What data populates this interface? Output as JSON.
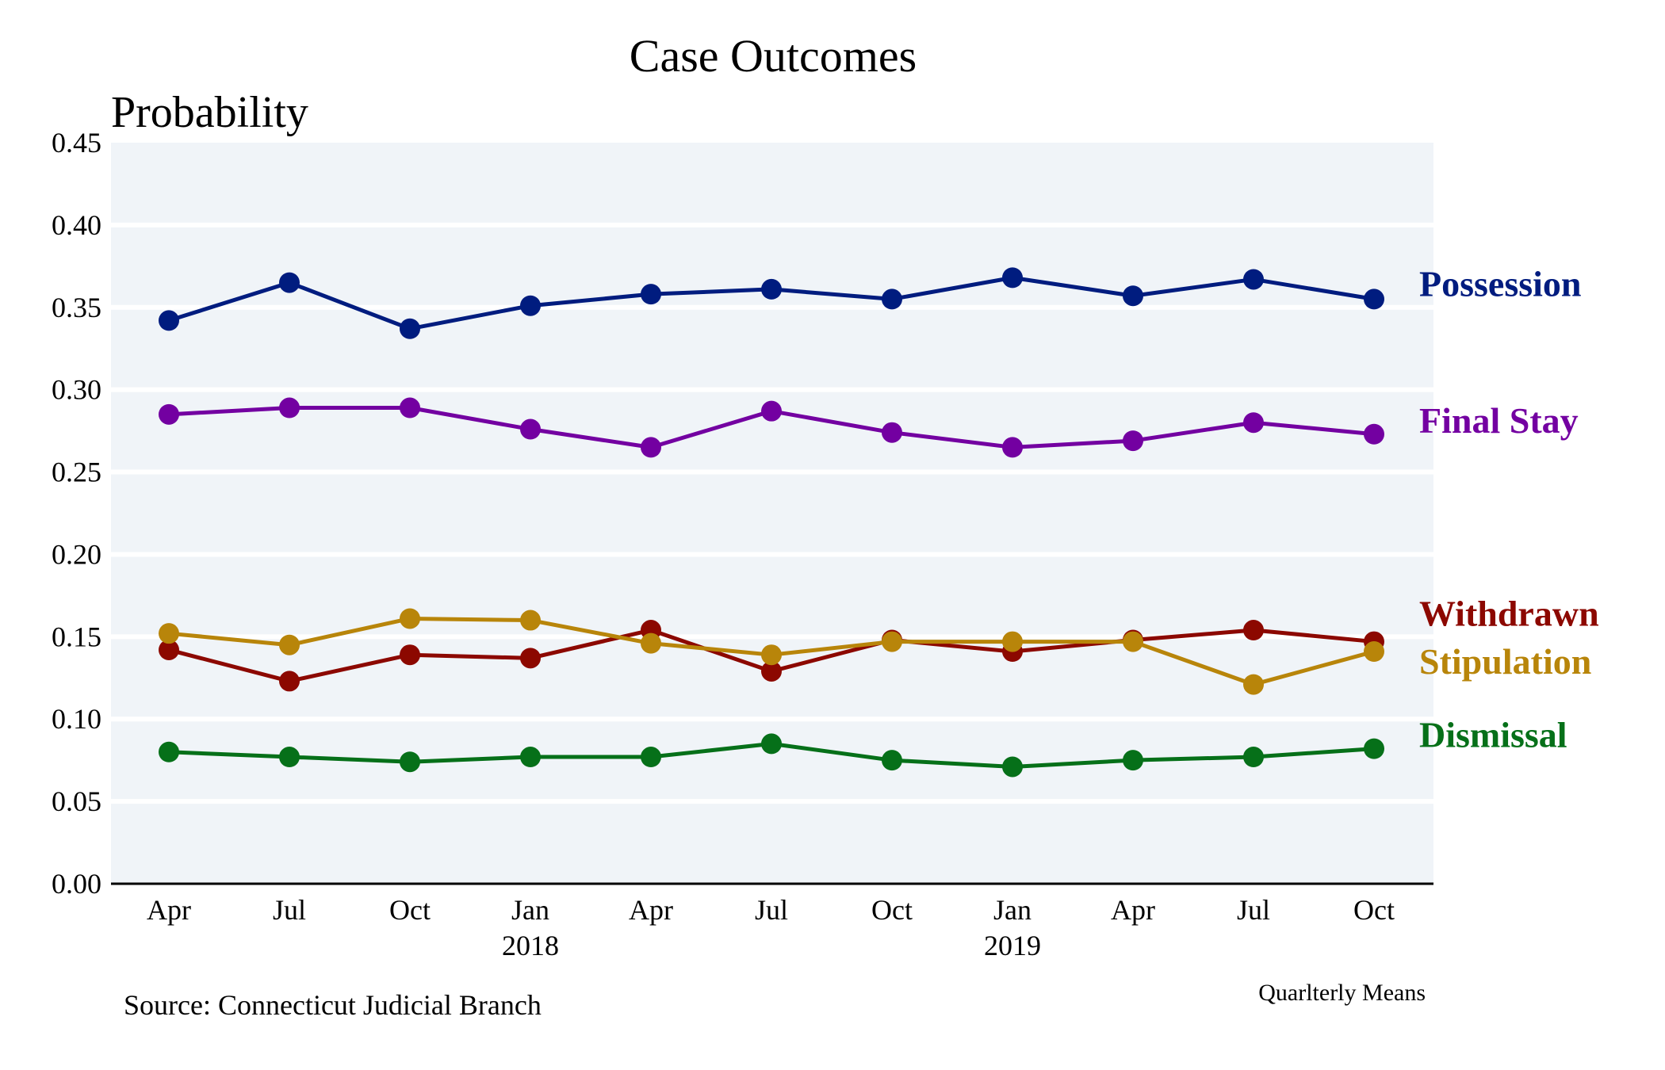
{
  "chart_data": {
    "type": "line",
    "title": "Case Outcomes",
    "ylabel": "Probability",
    "xlabel": "",
    "ylim": [
      0,
      0.45
    ],
    "yticks": [
      "0.00",
      "0.05",
      "0.10",
      "0.15",
      "0.20",
      "0.25",
      "0.30",
      "0.35",
      "0.40",
      "0.45"
    ],
    "ytick_values": [
      0,
      0.05,
      0.1,
      0.15,
      0.2,
      0.25,
      0.3,
      0.35,
      0.4,
      0.45
    ],
    "grid": true,
    "legend": "right, labels at line ends",
    "categories": [
      "Apr 2017",
      "Jul 2017",
      "Oct 2017",
      "Jan 2018",
      "Apr 2018",
      "Jul 2018",
      "Oct 2018",
      "Jan 2019",
      "Apr 2019",
      "Jul 2019",
      "Oct 2019"
    ],
    "xtick_labels": [
      "Apr",
      "Jul",
      "Oct",
      "Jan",
      "Apr",
      "Jul",
      "Oct",
      "Jan",
      "Apr",
      "Jul",
      "Oct"
    ],
    "xtick_years": [
      "",
      "",
      "",
      "2018",
      "",
      "",
      "",
      "2019",
      "",
      "",
      ""
    ],
    "series": [
      {
        "name": "Possession",
        "color": "#001c7f",
        "values": [
          0.342,
          0.365,
          0.337,
          0.351,
          0.358,
          0.361,
          0.355,
          0.368,
          0.357,
          0.367,
          0.355
        ]
      },
      {
        "name": "Final Stay",
        "color": "#7300a1",
        "values": [
          0.285,
          0.289,
          0.289,
          0.276,
          0.265,
          0.287,
          0.274,
          0.265,
          0.269,
          0.28,
          0.273
        ]
      },
      {
        "name": "Withdrawn",
        "color": "#8c0800",
        "values": [
          0.142,
          0.123,
          0.139,
          0.137,
          0.154,
          0.129,
          0.148,
          0.141,
          0.148,
          0.154,
          0.147
        ]
      },
      {
        "name": "Stipulation",
        "color": "#b8850a",
        "values": [
          0.152,
          0.145,
          0.161,
          0.16,
          0.146,
          0.139,
          0.147,
          0.147,
          0.147,
          0.121,
          0.141
        ]
      },
      {
        "name": "Dismissal",
        "color": "#067019",
        "values": [
          0.08,
          0.077,
          0.074,
          0.077,
          0.077,
          0.085,
          0.075,
          0.071,
          0.075,
          0.077,
          0.082
        ]
      }
    ],
    "source": "Source: Connecticut Judicial Branch",
    "note": "Quarlterly Means",
    "colors": {
      "plot_background": "#f0f4f8",
      "gridline": "#ffffff",
      "axis": "#000000"
    }
  }
}
